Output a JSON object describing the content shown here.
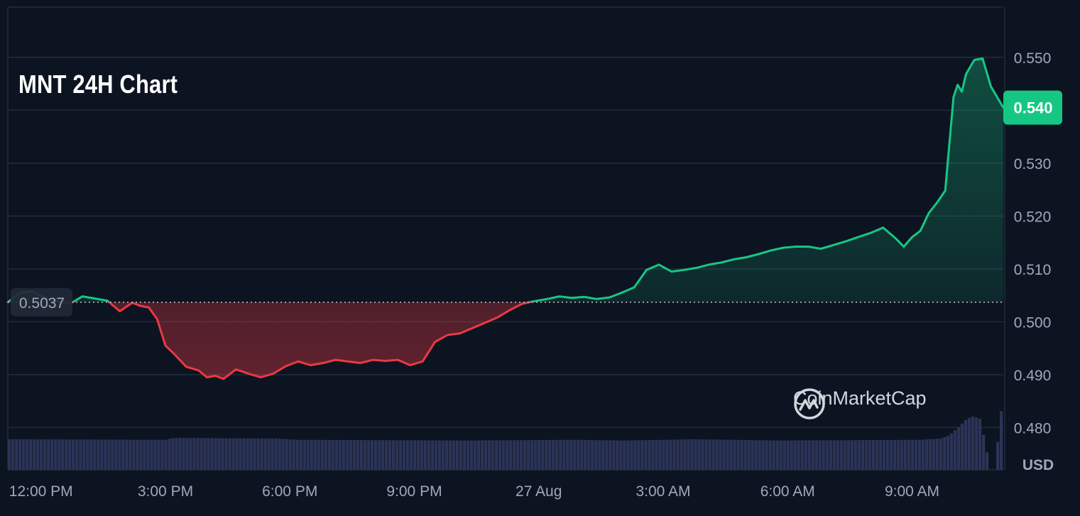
{
  "title": "MNT 24H Chart",
  "brand": {
    "name": "CoinMarketCap",
    "icon": "coinmarketcap-logo-icon"
  },
  "colors": {
    "background": "#0d1421",
    "grid": "#222b3b",
    "up": "#16c784",
    "down": "#ea3943",
    "volume": "#2b3457",
    "axis_text": "#a1a7bb",
    "baseline_label_bg": "#222936"
  },
  "chart_data": {
    "type": "area",
    "title": "MNT 24H Chart",
    "ylabel": "USD",
    "ylim": [
      0.472,
      0.5595
    ],
    "y_ticks": [
      "0.550",
      "0.540",
      "0.530",
      "0.520",
      "0.510",
      "0.500",
      "0.490",
      "0.480"
    ],
    "y_tick_values": [
      0.55,
      0.54,
      0.53,
      0.52,
      0.51,
      0.5,
      0.49,
      0.48
    ],
    "x_ticks": [
      "12:00 PM",
      "3:00 PM",
      "6:00 PM",
      "9:00 PM",
      "27 Aug",
      "3:00 AM",
      "6:00 AM",
      "9:00 AM"
    ],
    "x_tick_hours": [
      0.8,
      3.8,
      6.8,
      9.8,
      12.8,
      15.8,
      18.8,
      21.8
    ],
    "x_range_hours": [
      0,
      24
    ],
    "baseline": {
      "value": 0.5037,
      "label": "0.5037"
    },
    "current": {
      "value": 0.5405,
      "label": "0.540"
    },
    "grid": true,
    "price": {
      "t": [
        0,
        0.3,
        0.6,
        0.9,
        1.2,
        1.5,
        1.8,
        2.1,
        2.4,
        2.7,
        3.0,
        3.2,
        3.4,
        3.6,
        3.8,
        4.0,
        4.3,
        4.6,
        4.8,
        5.0,
        5.2,
        5.5,
        5.8,
        6.1,
        6.4,
        6.7,
        7.0,
        7.3,
        7.6,
        7.9,
        8.2,
        8.5,
        8.8,
        9.1,
        9.4,
        9.7,
        10.0,
        10.3,
        10.6,
        10.9,
        11.2,
        11.5,
        11.8,
        12.1,
        12.4,
        12.7,
        13.0,
        13.3,
        13.6,
        13.9,
        14.2,
        14.5,
        14.8,
        15.1,
        15.4,
        15.7,
        16.0,
        16.3,
        16.6,
        16.9,
        17.2,
        17.5,
        17.8,
        18.1,
        18.4,
        18.7,
        19.0,
        19.3,
        19.6,
        19.9,
        20.2,
        20.5,
        20.8,
        21.1,
        21.4,
        21.6,
        21.8,
        22.0,
        22.2,
        22.4,
        22.6,
        22.8,
        22.9,
        23.0,
        23.1,
        23.3,
        23.5,
        23.7,
        24.0
      ],
      "values": [
        0.5037,
        0.5055,
        0.5058,
        0.5044,
        0.5039,
        0.5034,
        0.5048,
        0.5044,
        0.504,
        0.502,
        0.5036,
        0.503,
        0.5027,
        0.5005,
        0.4955,
        0.494,
        0.4915,
        0.4908,
        0.4895,
        0.4898,
        0.4892,
        0.491,
        0.4902,
        0.4895,
        0.4902,
        0.4916,
        0.4925,
        0.4918,
        0.4922,
        0.4928,
        0.4925,
        0.4922,
        0.4928,
        0.4926,
        0.4928,
        0.4918,
        0.4925,
        0.4962,
        0.4975,
        0.4978,
        0.4988,
        0.4998,
        0.5008,
        0.5022,
        0.5034,
        0.5039,
        0.5043,
        0.5048,
        0.5045,
        0.5047,
        0.5043,
        0.5046,
        0.5055,
        0.5065,
        0.5098,
        0.5108,
        0.5095,
        0.5098,
        0.5102,
        0.5108,
        0.5112,
        0.5118,
        0.5122,
        0.5128,
        0.5135,
        0.514,
        0.5142,
        0.5142,
        0.5138,
        0.5145,
        0.5152,
        0.516,
        0.5168,
        0.5178,
        0.5158,
        0.5142,
        0.516,
        0.5172,
        0.5205,
        0.5225,
        0.5248,
        0.5425,
        0.5448,
        0.5435,
        0.5468,
        0.5495,
        0.5498,
        0.5445,
        0.5405
      ]
    },
    "volume": {
      "ylim": [
        0,
        1
      ],
      "t": [
        0,
        3.8,
        4.0,
        6.5,
        7.0,
        11.0,
        13.7,
        14.8,
        15.9,
        16.5,
        17.5,
        18.5,
        22.0,
        22.5,
        22.7,
        22.9,
        23.1,
        23.25,
        23.45,
        23.7,
        23.8,
        23.95,
        24.0
      ],
      "values": [
        0.48,
        0.47,
        0.5,
        0.49,
        0.47,
        0.46,
        0.47,
        0.46,
        0.47,
        0.48,
        0.47,
        0.46,
        0.47,
        0.49,
        0.54,
        0.65,
        0.78,
        0.84,
        0.8,
        0.0,
        0.0,
        0.92,
        0.92
      ]
    }
  }
}
